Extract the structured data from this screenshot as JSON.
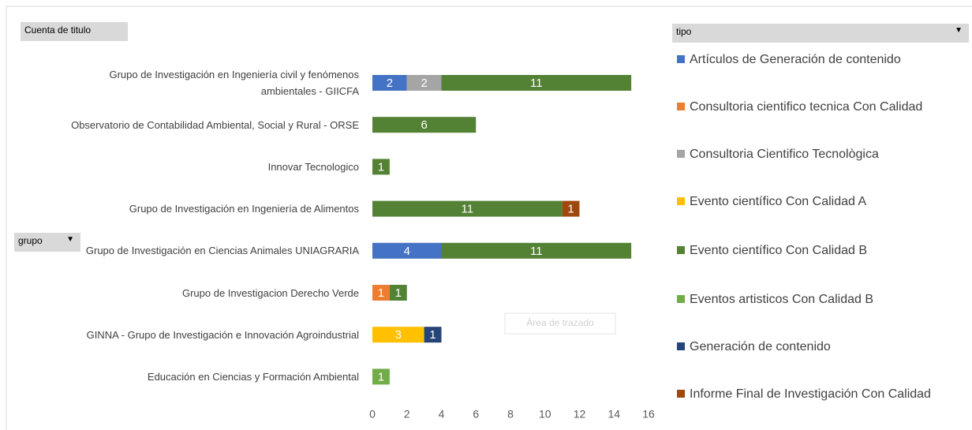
{
  "ui": {
    "value_field": "Cuenta de titulo",
    "legend_field": "tipo",
    "axis_field": "grupo",
    "tooltip": "Área de trazado"
  },
  "chart_data": {
    "type": "stacked-barh",
    "categories": [
      "Grupo de Investigación en Ingeniería civil y fenómenos ambientales - GIICFA",
      "Observatorio de Contabilidad Ambiental, Social y Rural - ORSE",
      "Innovar Tecnologico",
      "Grupo de Investigación en Ingeniería de Alimentos",
      "Grupo de Investigación en Ciencias Animales UNIAGRARIA",
      "Grupo de Investigacion Derecho Verde",
      "GINNA - Grupo de Investigación e Innovación Agroindustrial",
      "Educación en Ciencias y Formación Ambiental"
    ],
    "series": [
      {
        "name": "Artículos de Generación de contenido",
        "color": "#4472c4",
        "values": [
          2,
          null,
          null,
          null,
          4,
          null,
          null,
          null
        ]
      },
      {
        "name": "Consultoria cientifico tecnica Con Calidad",
        "color": "#ed7d31",
        "values": [
          null,
          null,
          null,
          null,
          null,
          1,
          null,
          null
        ]
      },
      {
        "name": "Consultoria Cientifico Tecnològica",
        "color": "#a5a5a5",
        "values": [
          2,
          null,
          null,
          null,
          null,
          null,
          null,
          null
        ]
      },
      {
        "name": "Evento científico Con Calidad A",
        "color": "#ffc000",
        "values": [
          null,
          null,
          null,
          null,
          null,
          null,
          3,
          null
        ]
      },
      {
        "name": "Evento científico Con Calidad B",
        "color": "#548235",
        "values": [
          11,
          6,
          1,
          11,
          11,
          1,
          null,
          null
        ]
      },
      {
        "name": "Eventos artisticos Con Calidad B",
        "color": "#70ad47",
        "values": [
          null,
          null,
          null,
          null,
          null,
          null,
          null,
          1
        ]
      },
      {
        "name": "Generación de contenido",
        "color": "#264478",
        "values": [
          null,
          null,
          null,
          null,
          null,
          null,
          1,
          null
        ]
      },
      {
        "name": "Informe Final de Investigación Con Calidad",
        "color": "#9e480e",
        "values": [
          null,
          null,
          null,
          1,
          null,
          null,
          null,
          null
        ]
      }
    ],
    "xlim": [
      0,
      16
    ],
    "xticks": [
      0,
      2,
      4,
      6,
      8,
      10,
      12,
      14,
      16
    ]
  }
}
